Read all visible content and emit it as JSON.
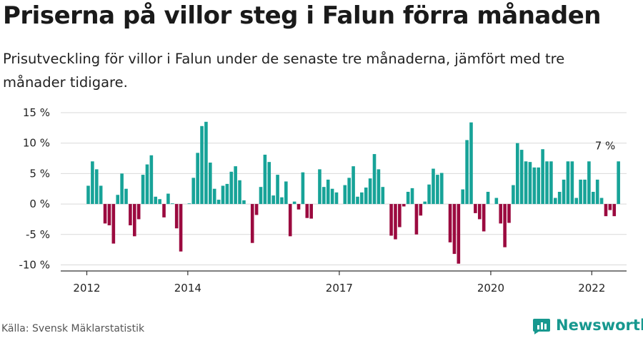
{
  "title": "Priserna på villor steg i Falun förra månaden",
  "subtitle": "Prisutveckling för villor i Falun under de senaste tre månaderna, jämfört med tre månader tidigare.",
  "source": "Källa: Svensk Mäklarstatistik",
  "brand": {
    "name": "Newsworthy",
    "icon": "newsworthy-logo-icon"
  },
  "colors": {
    "positive": "#17a398",
    "negative": "#9b0a3f",
    "grid": "#d9d9d9",
    "axis": "#333333"
  },
  "chart_data": {
    "type": "bar",
    "x_start": "2012-01",
    "x_end": "2022-04",
    "x_ticks": [
      {
        "value": "2012-01",
        "label": "2012"
      },
      {
        "value": "2014-01",
        "label": "2014"
      },
      {
        "value": "2017-01",
        "label": "2017"
      },
      {
        "value": "2020-01",
        "label": "2020"
      },
      {
        "value": "2022-01",
        "label": "2022"
      }
    ],
    "y_ticks": [
      {
        "value": 15,
        "label": "15 %"
      },
      {
        "value": 10,
        "label": "10 %"
      },
      {
        "value": 5,
        "label": "5 %"
      },
      {
        "value": 0,
        "label": "0 %"
      },
      {
        "value": -5,
        "label": "-5 %"
      },
      {
        "value": -10,
        "label": "-10 %"
      }
    ],
    "ylim": [
      -11,
      15
    ],
    "grid": true,
    "annotation": {
      "x": "2022-04",
      "value": 7,
      "label": "7 %"
    },
    "values": [
      3,
      7,
      5.7,
      3,
      -3.2,
      -3.5,
      -6.5,
      1.5,
      5,
      2.5,
      -3.5,
      -5.3,
      -2.5,
      4.8,
      6.5,
      8,
      1.2,
      0.8,
      -2.2,
      1.7,
      0.1,
      -4,
      -7.8,
      0,
      0.1,
      4.3,
      8.4,
      12.8,
      13.5,
      6.8,
      2.5,
      0.7,
      3,
      3.3,
      5.3,
      6.2,
      3.9,
      0.6,
      0,
      -6.4,
      -1.8,
      2.8,
      8.1,
      6.9,
      1.4,
      4.8,
      1.1,
      3.7,
      -5.3,
      0.4,
      -0.9,
      5.2,
      -2.3,
      -2.4,
      0,
      5.7,
      2.8,
      4,
      2.5,
      1.9,
      0,
      3.1,
      4.3,
      6.2,
      1.2,
      1.9,
      2.7,
      4.2,
      8.2,
      5.7,
      2.8,
      0,
      -5.2,
      -5.8,
      -3.8,
      -0.4,
      2,
      2.6,
      -5,
      -1.9,
      0.4,
      3.2,
      5.8,
      4.8,
      5.1,
      0,
      -6.3,
      -8.2,
      -9.8,
      2.4,
      10.5,
      13.4,
      -1.5,
      -2.5,
      -4.5,
      2,
      0,
      1,
      -3.2,
      -7.1,
      -3.1,
      3.1,
      10,
      8.9,
      7,
      6.9,
      6,
      6,
      9,
      7,
      7,
      1,
      2,
      4,
      7,
      7,
      1,
      4,
      4,
      7,
      2,
      4,
      1,
      -2,
      -1,
      -2,
      7
    ]
  }
}
